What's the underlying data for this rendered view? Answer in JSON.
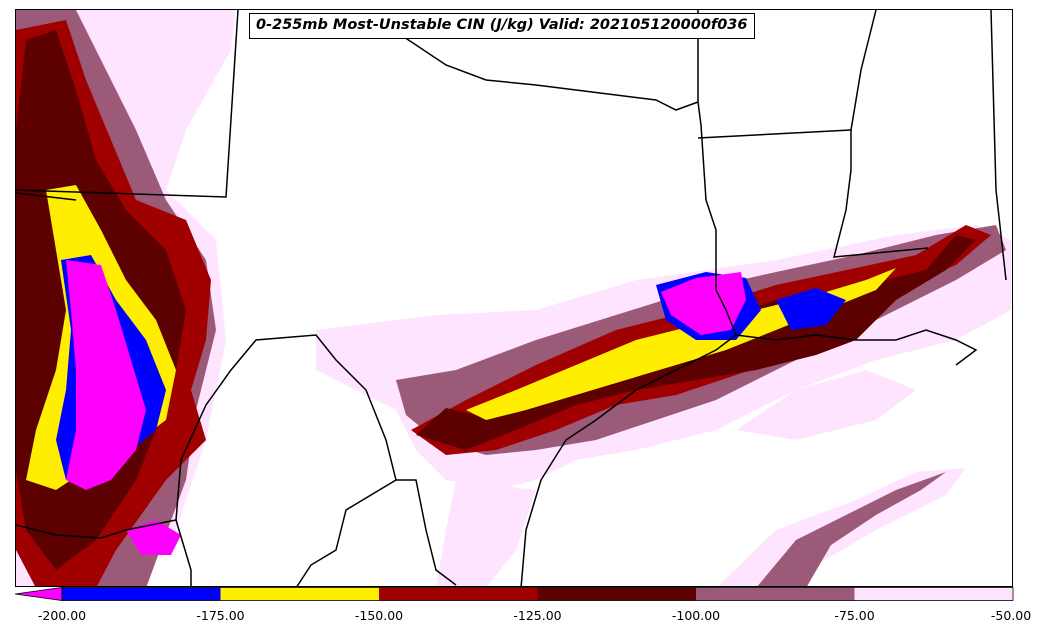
{
  "title": "0-255mb Most-Unstable CIN (J/kg) Valid: 202105120000f036",
  "colorbar": {
    "levels": [
      -200,
      -175,
      -150,
      -125,
      -100,
      -75,
      -50
    ],
    "tick_labels": [
      "-200.00",
      "-175.00",
      "-150.00",
      "-125.00",
      "-100.00",
      "-75.00",
      "-50.00"
    ],
    "under_color": "#ff00ff",
    "colors": [
      "#0000ff",
      "#ffee00",
      "#a00000",
      "#5c0000",
      "#9a5a78",
      "#ffe4ff"
    ]
  },
  "legend_colors": {
    "magenta": "#ff00ff",
    "blue": "#0000ff",
    "yellow": "#ffee00",
    "red": "#a00000",
    "dark_red": "#5c0000",
    "mauve": "#9a5a78",
    "pink": "#ffe4ff"
  }
}
